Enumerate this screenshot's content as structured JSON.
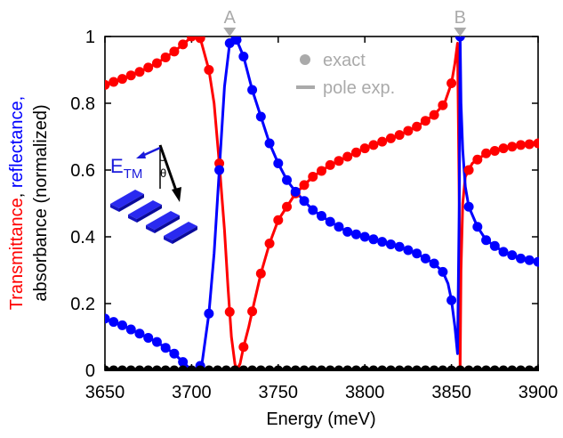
{
  "chart_data": {
    "type": "line",
    "xlabel": "Energy (meV)",
    "ylabel_parts": [
      {
        "text": "Transmittance",
        "color": "#ff0000"
      },
      {
        "text": ", ",
        "color": "#000000"
      },
      {
        "text": "reflectance",
        "color": "#0000ff"
      },
      {
        "text": ",",
        "color": "#0000ff"
      }
    ],
    "ylabel_line2": "absorbance (normalized)",
    "xlim": [
      3650,
      3900
    ],
    "ylim": [
      0,
      1
    ],
    "xticks": [
      "3650",
      "3700",
      "3750",
      "3800",
      "3850",
      "3900"
    ],
    "yticks": [
      "0",
      "0.2",
      "0.4",
      "0.6",
      "0.8",
      "1"
    ],
    "grid": false,
    "legend": {
      "placement": "top-right",
      "items": [
        {
          "label": "exact",
          "marker": "dot",
          "color": "#aaaaaa"
        },
        {
          "label": "pole exp.",
          "marker": "line",
          "color": "#aaaaaa"
        }
      ]
    },
    "annotations": [
      {
        "label": "A",
        "x": 3722,
        "color": "#aaaaaa"
      },
      {
        "label": "B",
        "x": 3855,
        "color": "#aaaaaa"
      }
    ],
    "inset": {
      "field_label": "E",
      "field_subscript": "TM",
      "angle_label": "θ",
      "field_color": "#1a1adb"
    },
    "series": [
      {
        "key": "transmittance",
        "color": "#ff0000",
        "curve": [
          [
            3650,
            0.855
          ],
          [
            3660,
            0.873
          ],
          [
            3670,
            0.894
          ],
          [
            3680,
            0.92
          ],
          [
            3690,
            0.955
          ],
          [
            3697,
            0.985
          ],
          [
            3700,
            1.0
          ],
          [
            3705,
            0.995
          ],
          [
            3710,
            0.9
          ],
          [
            3713,
            0.8
          ],
          [
            3716,
            0.62
          ],
          [
            3719,
            0.42
          ],
          [
            3721,
            0.25
          ],
          [
            3723,
            0.1
          ],
          [
            3725,
            0.02
          ],
          [
            3726,
            0.0
          ],
          [
            3728,
            0.02
          ],
          [
            3730,
            0.07
          ],
          [
            3733,
            0.13
          ],
          [
            3736,
            0.2
          ],
          [
            3740,
            0.29
          ],
          [
            3745,
            0.38
          ],
          [
            3750,
            0.45
          ],
          [
            3760,
            0.53
          ],
          [
            3770,
            0.58
          ],
          [
            3780,
            0.615
          ],
          [
            3790,
            0.64
          ],
          [
            3800,
            0.665
          ],
          [
            3810,
            0.685
          ],
          [
            3820,
            0.705
          ],
          [
            3830,
            0.73
          ],
          [
            3840,
            0.765
          ],
          [
            3846,
            0.8
          ],
          [
            3850,
            0.86
          ],
          [
            3852,
            0.92
          ],
          [
            3853.5,
            0.98
          ],
          [
            3854.5,
            0.5
          ],
          [
            3855,
            0.0
          ],
          [
            3855.5,
            0.3
          ],
          [
            3856.5,
            0.5
          ],
          [
            3858,
            0.58
          ],
          [
            3862,
            0.62
          ],
          [
            3870,
            0.65
          ],
          [
            3880,
            0.665
          ],
          [
            3890,
            0.675
          ],
          [
            3900,
            0.68
          ]
        ],
        "points_x": [
          3650,
          3655,
          3660,
          3665,
          3670,
          3675,
          3680,
          3685,
          3690,
          3695,
          3700,
          3705,
          3710,
          3716,
          3722,
          3726,
          3730,
          3735,
          3740,
          3745,
          3750,
          3755,
          3760,
          3765,
          3770,
          3775,
          3780,
          3785,
          3790,
          3795,
          3800,
          3805,
          3810,
          3815,
          3820,
          3825,
          3830,
          3835,
          3840,
          3845,
          3850,
          3855,
          3860,
          3865,
          3870,
          3875,
          3880,
          3885,
          3890,
          3895,
          3900
        ]
      },
      {
        "key": "reflectance",
        "color": "#0000ff",
        "curve": [
          [
            3650,
            0.155
          ],
          [
            3660,
            0.135
          ],
          [
            3670,
            0.11
          ],
          [
            3680,
            0.085
          ],
          [
            3690,
            0.05
          ],
          [
            3697,
            0.015
          ],
          [
            3700,
            0.0
          ],
          [
            3703,
            0.0
          ],
          [
            3706,
            0.02
          ],
          [
            3710,
            0.17
          ],
          [
            3713,
            0.35
          ],
          [
            3716,
            0.6
          ],
          [
            3719,
            0.85
          ],
          [
            3722,
            0.98
          ],
          [
            3724,
            1.0
          ],
          [
            3726,
            0.99
          ],
          [
            3730,
            0.94
          ],
          [
            3735,
            0.84
          ],
          [
            3740,
            0.76
          ],
          [
            3745,
            0.68
          ],
          [
            3750,
            0.62
          ],
          [
            3755,
            0.57
          ],
          [
            3760,
            0.535
          ],
          [
            3770,
            0.48
          ],
          [
            3780,
            0.445
          ],
          [
            3790,
            0.415
          ],
          [
            3800,
            0.4
          ],
          [
            3810,
            0.385
          ],
          [
            3820,
            0.37
          ],
          [
            3830,
            0.35
          ],
          [
            3840,
            0.32
          ],
          [
            3845,
            0.295
          ],
          [
            3848,
            0.26
          ],
          [
            3850,
            0.21
          ],
          [
            3852,
            0.13
          ],
          [
            3853.5,
            0.05
          ],
          [
            3854.5,
            0.5
          ],
          [
            3855,
            1.0
          ],
          [
            3855.5,
            0.8
          ],
          [
            3856.5,
            0.66
          ],
          [
            3858,
            0.55
          ],
          [
            3860,
            0.49
          ],
          [
            3865,
            0.43
          ],
          [
            3870,
            0.39
          ],
          [
            3880,
            0.355
          ],
          [
            3890,
            0.335
          ],
          [
            3900,
            0.325
          ]
        ],
        "points_x": [
          3650,
          3655,
          3660,
          3665,
          3670,
          3675,
          3680,
          3685,
          3690,
          3695,
          3700,
          3705,
          3710,
          3716,
          3722,
          3726,
          3730,
          3735,
          3740,
          3745,
          3750,
          3755,
          3760,
          3765,
          3770,
          3775,
          3780,
          3785,
          3790,
          3795,
          3800,
          3805,
          3810,
          3815,
          3820,
          3825,
          3830,
          3835,
          3840,
          3845,
          3850,
          3855,
          3860,
          3865,
          3870,
          3875,
          3880,
          3885,
          3890,
          3895,
          3900
        ]
      },
      {
        "key": "absorbance",
        "color": "#000000",
        "curve": [
          [
            3650,
            0.0
          ],
          [
            3900,
            0.0
          ]
        ],
        "points_x": [
          3650,
          3655,
          3660,
          3665,
          3670,
          3675,
          3680,
          3685,
          3690,
          3695,
          3700,
          3705,
          3710,
          3715,
          3720,
          3725,
          3730,
          3735,
          3740,
          3745,
          3750,
          3755,
          3760,
          3765,
          3770,
          3775,
          3780,
          3785,
          3790,
          3795,
          3800,
          3805,
          3810,
          3815,
          3820,
          3825,
          3830,
          3835,
          3840,
          3845,
          3850,
          3855,
          3860,
          3865,
          3870,
          3875,
          3880,
          3885,
          3890,
          3895,
          3900
        ]
      }
    ]
  }
}
